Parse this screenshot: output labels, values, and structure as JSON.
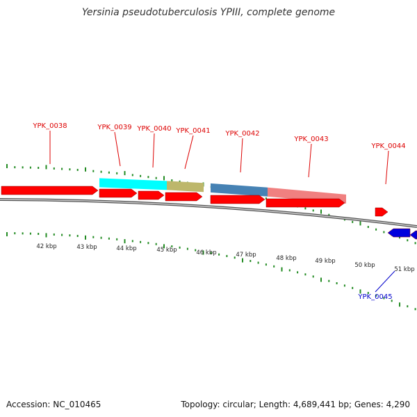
{
  "title": "Yersinia pseudotuberculosis YPIII, complete genome",
  "footer": {
    "accession": "Accession: NC_010465",
    "summary": "Topology: circular; Length: 4,689,441 bp; Genes: 4,290"
  },
  "colors": {
    "forward": "#ff0000",
    "reverse": "#0000dd",
    "tick": "#228b22",
    "label_forward": "#dd0000",
    "label_reverse": "#0000cc",
    "backbone": "#888888",
    "cyan": "#00ffff",
    "khaki": "#bdb76b",
    "steelblue": "#4682b4",
    "lightcoral": "#f08080"
  },
  "scale_labels": [
    "42 kbp",
    "43 kbp",
    "44 kbp",
    "45 kbp",
    "46 kbp",
    "47 kbp",
    "48 kbp",
    "49 kbp",
    "50 kbp",
    "51 kbp"
  ],
  "gene_labels": [
    {
      "text": "YPK_0038",
      "strand": "forward"
    },
    {
      "text": "YPK_0039",
      "strand": "forward"
    },
    {
      "text": "YPK_0040",
      "strand": "forward"
    },
    {
      "text": "YPK_0041",
      "strand": "forward"
    },
    {
      "text": "YPK_0042",
      "strand": "forward"
    },
    {
      "text": "YPK_0043",
      "strand": "forward"
    },
    {
      "text": "YPK_0044",
      "strand": "forward"
    },
    {
      "text": "YPK_0045",
      "strand": "reverse"
    }
  ]
}
